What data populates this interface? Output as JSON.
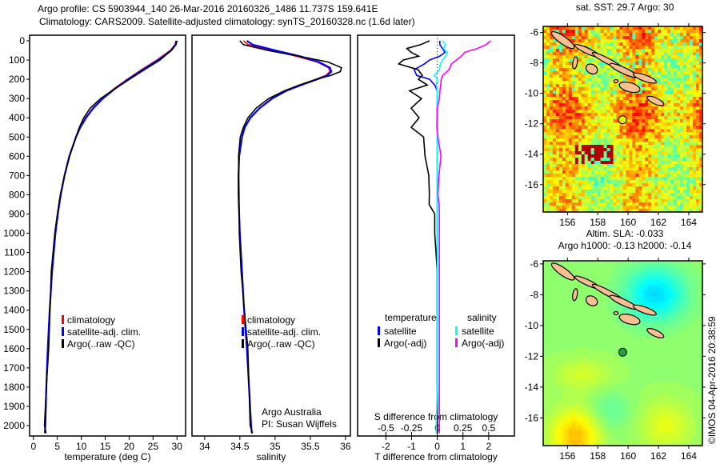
{
  "title_line1": "Argo profile: CS 5903944_140 26-Mar-2016 20160326_1486 11.737S 159.641E",
  "title_line2": "Climatology: CARS2009. Satellite-adjusted climatology: synTS_20160328.nc (1.6d later)",
  "credit": "Argo Australia",
  "pi": "PI: Susan Wijffels",
  "imos_stamp": "©IMOS 04-Apr-2016 20:38:59",
  "colors": {
    "climatology": "#ff0000",
    "satellite": "#0000ff",
    "argo": "#000000",
    "sal_satellite": "#00ffff",
    "sal_argo": "#ff00ff"
  },
  "chart_data": [
    {
      "id": "temperature",
      "type": "line",
      "xlabel": "temperature (deg C)",
      "ylabel": "",
      "xlim": [
        -0.8,
        31.8
      ],
      "ylim": [
        2050,
        0
      ],
      "xticks": [
        0,
        5,
        10,
        15,
        20,
        25,
        30
      ],
      "yticks": [
        0,
        100,
        200,
        300,
        400,
        500,
        600,
        700,
        800,
        900,
        1000,
        1100,
        1200,
        1300,
        1400,
        1500,
        1600,
        1700,
        1800,
        1900,
        2000
      ],
      "legend": [
        "climatology",
        "satellite-adj. clim.",
        "Argo(..raw -QC)"
      ],
      "legend_position": "center-left",
      "depth": [
        0,
        20,
        50,
        100,
        150,
        200,
        250,
        300,
        350,
        400,
        450,
        500,
        600,
        700,
        800,
        900,
        1000,
        1200,
        1400,
        1600,
        1800,
        2000,
        2040
      ],
      "series": [
        {
          "name": "climatology",
          "values": [
            29.8,
            29.6,
            28.6,
            25.8,
            22.6,
            19.6,
            16.8,
            14.4,
            12.4,
            10.9,
            9.8,
            8.9,
            7.5,
            6.5,
            5.7,
            5.1,
            4.6,
            3.9,
            3.4,
            3.0,
            2.7,
            2.5,
            2.4
          ]
        },
        {
          "name": "satellite-adj. clim.",
          "values": [
            29.9,
            29.7,
            28.8,
            26.1,
            22.9,
            19.8,
            17.0,
            14.5,
            12.5,
            11.0,
            9.8,
            8.9,
            7.5,
            6.5,
            5.7,
            5.1,
            4.6,
            3.9,
            3.4,
            3.0,
            2.7,
            2.5,
            2.4
          ]
        },
        {
          "name": "Argo(..raw -QC)",
          "values": [
            30.0,
            29.8,
            28.9,
            26.6,
            23.4,
            20.3,
            17.2,
            14.2,
            12.0,
            10.6,
            9.6,
            8.8,
            7.4,
            6.3,
            5.5,
            5.0,
            4.6,
            3.9,
            3.4,
            3.0,
            2.7,
            2.5,
            2.5
          ]
        }
      ]
    },
    {
      "id": "salinity",
      "type": "line",
      "xlabel": "salinity",
      "xlim": [
        33.82,
        36.07
      ],
      "ylim": [
        2050,
        0
      ],
      "xticks": [
        34,
        34.5,
        35,
        35.5,
        36
      ],
      "legend": [
        "climatology",
        "satellite-adj. clim.",
        "Argo(..raw -QC)"
      ],
      "depth": [
        0,
        20,
        50,
        80,
        110,
        140,
        160,
        180,
        200,
        230,
        260,
        300,
        350,
        400,
        450,
        500,
        600,
        700,
        800,
        1000,
        1200,
        1400,
        1600,
        1800,
        2000,
        2040
      ],
      "series": [
        {
          "name": "climatology",
          "values": [
            34.55,
            34.62,
            34.95,
            35.3,
            35.6,
            35.76,
            35.78,
            35.72,
            35.58,
            35.35,
            35.15,
            34.95,
            34.78,
            34.65,
            34.57,
            34.53,
            34.49,
            34.48,
            34.48,
            34.5,
            34.53,
            34.56,
            34.6,
            34.63,
            34.66,
            34.67
          ]
        },
        {
          "name": "satellite-adj. clim.",
          "values": [
            34.6,
            34.68,
            35.0,
            35.35,
            35.62,
            35.78,
            35.8,
            35.74,
            35.6,
            35.37,
            35.16,
            34.96,
            34.78,
            34.65,
            34.57,
            34.53,
            34.49,
            34.48,
            34.48,
            34.5,
            34.53,
            34.56,
            34.6,
            34.63,
            34.66,
            34.67
          ]
        },
        {
          "name": "Argo(..raw -QC)",
          "values": [
            34.5,
            34.55,
            34.9,
            35.35,
            35.75,
            35.93,
            35.92,
            35.8,
            35.6,
            35.35,
            35.12,
            34.92,
            34.74,
            34.62,
            34.55,
            34.5,
            34.47,
            34.47,
            34.48,
            34.5,
            34.53,
            34.56,
            34.6,
            34.63,
            34.66,
            34.67
          ]
        }
      ]
    },
    {
      "id": "difference",
      "type": "line",
      "xlabel": "T difference from climatology",
      "x2label": "S difference from climatology",
      "xlim": [
        -3.1,
        3.0
      ],
      "x2lim": [
        -0.775,
        0.75
      ],
      "ylim": [
        2050,
        0
      ],
      "xticks": [
        -2,
        -1,
        0,
        1,
        2
      ],
      "x2ticks": [
        "-0.5",
        "-0.25",
        "0",
        "0.25",
        "0.5"
      ],
      "legend_temperature_title": "temperature",
      "legend_salinity_title": "salinity",
      "legend": [
        "satellite",
        "Argo(-adj)",
        "satellite",
        "Argo(-adj)"
      ],
      "depth": [
        0,
        20,
        40,
        60,
        80,
        100,
        120,
        150,
        180,
        200,
        230,
        260,
        300,
        350,
        400,
        450,
        500,
        600,
        700,
        800,
        850,
        900,
        1000,
        1200,
        1400,
        1600,
        1800,
        2000,
        2040
      ],
      "series": [
        {
          "name": "temperature satellite",
          "values": [
            0.1,
            0.1,
            0.2,
            0.3,
            0.1,
            -0.3,
            -0.5,
            -0.9,
            -0.8,
            -0.3,
            -0.1,
            0,
            0,
            0,
            0,
            0,
            0,
            0,
            0,
            0,
            0,
            0,
            0,
            0,
            0,
            0,
            0,
            0,
            0
          ]
        },
        {
          "name": "temperature Argo(-adj)",
          "values": [
            -0.3,
            -0.6,
            -1.1,
            -0.9,
            -0.6,
            -1.2,
            -1.4,
            -0.7,
            -0.6,
            -0.8,
            -0.5,
            -1.2,
            -0.7,
            -1.0,
            -0.6,
            -0.9,
            -0.5,
            -0.6,
            -0.3,
            -0.2,
            -0.3,
            -0.1,
            -0.1,
            0,
            0,
            0,
            0,
            0,
            0
          ]
        },
        {
          "name": "salinity satellite",
          "values": [
            0.05,
            0.08,
            0.06,
            0.1,
            0.08,
            0.05,
            0.03,
            0.02,
            -0.03,
            0,
            -0.01,
            0,
            0,
            0,
            0,
            0,
            0,
            0,
            0,
            0,
            0,
            0,
            0,
            0,
            0,
            0,
            0,
            -0.01,
            -0.01
          ]
        },
        {
          "name": "salinity Argo(-adj)",
          "values": [
            0.52,
            0.48,
            0.4,
            0.28,
            0.25,
            0.2,
            0.15,
            0.12,
            0.05,
            0.03,
            0.02,
            0.01,
            0.01,
            0,
            0.01,
            0.01,
            0.01,
            0.02,
            0.02,
            0.02,
            0.02,
            0.02,
            0.02,
            0.02,
            0.02,
            0.02,
            0.02,
            0.02,
            0.02
          ]
        }
      ]
    },
    {
      "id": "sst_map",
      "type": "heatmap",
      "title": "sat. SST: 29.7 Argo: 30",
      "xlim": [
        154.4,
        164.9
      ],
      "ylim": [
        -17.8,
        -5.6
      ],
      "xticks": [
        156,
        158,
        160,
        162,
        164
      ],
      "yticks": [
        -6,
        -8,
        -10,
        -12,
        -14,
        -16
      ],
      "float_position": {
        "lon": 159.641,
        "lat": -11.737
      }
    },
    {
      "id": "sla_map",
      "type": "heatmap",
      "title_line1": "Altim. SLA: -0.033",
      "title_line2": "Argo h1000: -0.13 h2000: -0.14",
      "xlim": [
        154.4,
        164.9
      ],
      "ylim": [
        -17.8,
        -5.8
      ],
      "xticks": [
        156,
        158,
        160,
        162,
        164
      ],
      "yticks": [
        -6,
        -8,
        -10,
        -12,
        -14,
        -16
      ],
      "float_position": {
        "lon": 159.641,
        "lat": -11.737
      }
    }
  ]
}
